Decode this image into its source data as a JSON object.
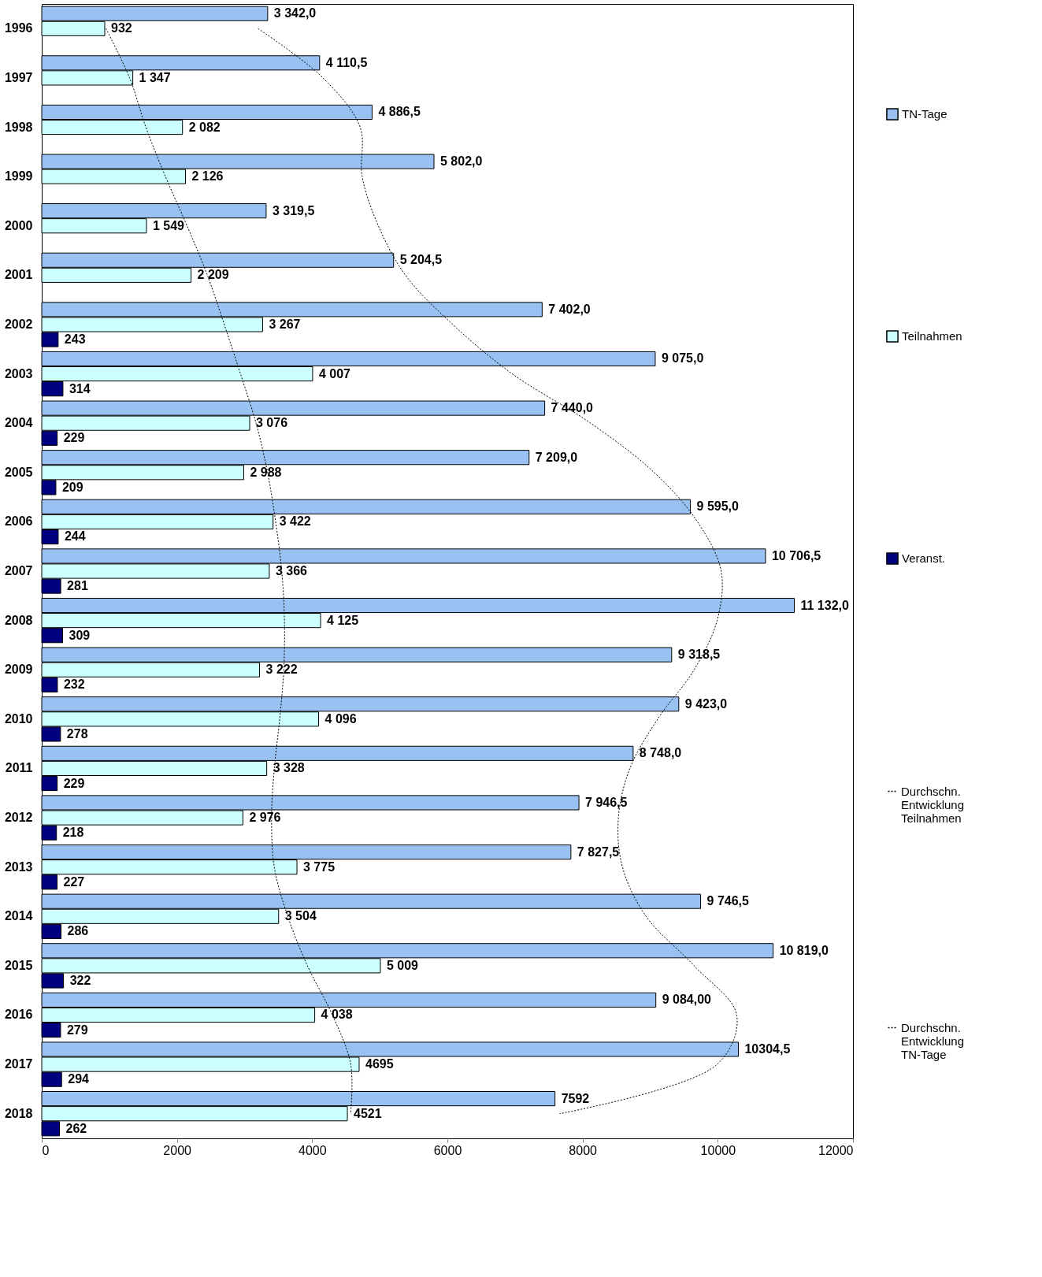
{
  "chart_data": {
    "type": "bar",
    "orientation": "horizontal",
    "categories": [
      "1996",
      "1997",
      "1998",
      "1999",
      "2000",
      "2001",
      "2002",
      "2003",
      "2004",
      "2005",
      "2006",
      "2007",
      "2008",
      "2009",
      "2010",
      "2011",
      "2012",
      "2013",
      "2014",
      "2015",
      "2016",
      "2017",
      "2018"
    ],
    "series": [
      {
        "name": "TN-Tage",
        "type": "bar",
        "color": "#99c2f2",
        "values": [
          3342.0,
          4110.5,
          4886.5,
          5802.0,
          3319.5,
          5204.5,
          7402.0,
          9075.0,
          7440.0,
          7209.0,
          9595.0,
          10706.5,
          11132.0,
          9318.5,
          9423.0,
          8748.0,
          7946.5,
          7827.5,
          9746.5,
          10819.0,
          9084.0,
          10304.5,
          7592
        ],
        "value_labels": [
          "3 342,0",
          "4 110,5",
          "4 886,5",
          "5 802,0",
          "3 319,5",
          "5 204,5",
          "7 402,0",
          "9 075,0",
          "7 440,0",
          "7 209,0",
          "9 595,0",
          "10 706,5",
          "11 132,0",
          "9 318,5",
          "9 423,0",
          "8 748,0",
          "7 946,5",
          "7 827,5",
          "9 746,5",
          "10 819,0",
          "9 084,00",
          "10304,5",
          "7592"
        ]
      },
      {
        "name": "Teilnahmen",
        "type": "bar",
        "color": "#ccffff",
        "values": [
          932,
          1347,
          2082,
          2126,
          1549,
          2209,
          3267,
          4007,
          3076,
          2988,
          3422,
          3366,
          4125,
          3222,
          4096,
          3328,
          2976,
          3775,
          3504,
          5009,
          4038,
          4695,
          4521
        ],
        "value_labels": [
          "932",
          "1 347",
          "2 082",
          "2 126",
          "1 549",
          "2 209",
          "3 267",
          "4 007",
          "3 076",
          "2 988",
          "3 422",
          "3 366",
          "4 125",
          "3 222",
          "4 096",
          "3 328",
          "2 976",
          "3 775",
          "3 504",
          "5 009",
          "4 038",
          "4695",
          "4521"
        ]
      },
      {
        "name": "Veranst.",
        "type": "bar",
        "color": "#000080",
        "values": [
          null,
          null,
          null,
          null,
          null,
          null,
          243,
          314,
          229,
          209,
          244,
          281,
          309,
          232,
          278,
          229,
          218,
          227,
          286,
          322,
          279,
          294,
          262
        ],
        "value_labels": [
          null,
          null,
          null,
          null,
          null,
          null,
          "243",
          "314",
          "229",
          "209",
          "244",
          "281",
          "309",
          "232",
          "278",
          "229",
          "218",
          "227",
          "286",
          "322",
          "279",
          "294",
          "262"
        ]
      },
      {
        "name": "Durchschn. Entwicklung Teilnahmen",
        "type": "line",
        "line_style": "dotted",
        "color": "#000000",
        "values": [
          950,
          1300,
          1540,
          1830,
          2150,
          2450,
          2700,
          2940,
          3170,
          3340,
          3460,
          3550,
          3590,
          3580,
          3520,
          3440,
          3400,
          3440,
          3640,
          3930,
          4300,
          4570,
          4570
        ]
      },
      {
        "name": "Durchschn. Entwicklung TN-Tage",
        "type": "line",
        "line_style": "dotted",
        "color": "#000000",
        "values": [
          3200,
          4160,
          4710,
          4740,
          4980,
          5380,
          6080,
          6960,
          8120,
          9060,
          9700,
          10050,
          9990,
          9650,
          9110,
          8700,
          8530,
          8590,
          8940,
          9650,
          10280,
          9990,
          7660
        ]
      }
    ],
    "xlim": [
      0,
      12000
    ],
    "xticks": [
      0,
      {
        "value": 2000,
        "label": "2000"
      },
      {
        "value": 4000,
        "label": "4000"
      },
      {
        "value": 6000,
        "label": "6000"
      },
      {
        "value": 8000,
        "label": "8000"
      },
      {
        "value": 10000,
        "label": "10000"
      },
      {
        "value": 12000,
        "label": "12000"
      }
    ],
    "grid": false,
    "legend": "right"
  }
}
